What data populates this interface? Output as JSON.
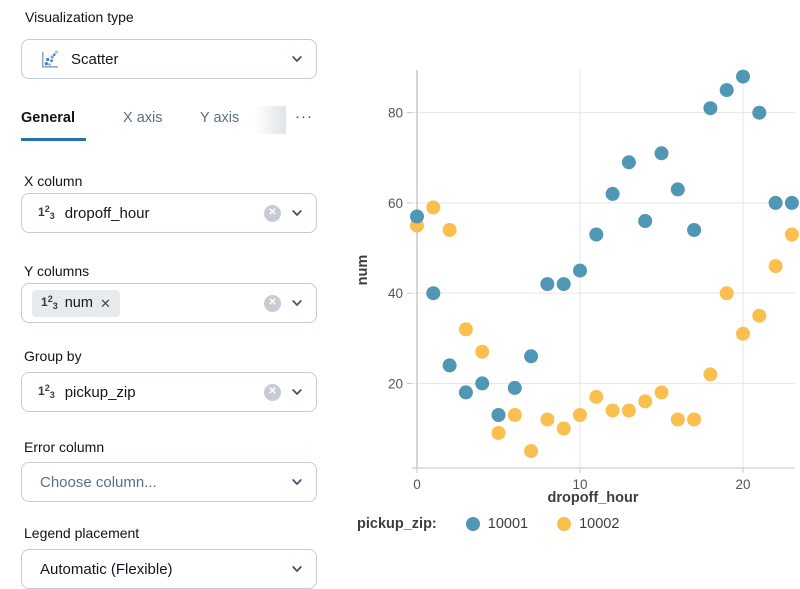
{
  "sidebar": {
    "viz_type_label": "Visualization type",
    "viz_type_value": "Scatter",
    "tabs": [
      {
        "label": "General",
        "active": true
      },
      {
        "label": "X axis",
        "active": false
      },
      {
        "label": "Y axis",
        "active": false
      }
    ],
    "tabs_more": "···",
    "fields": [
      {
        "label": "X column",
        "value": "dropoff_hour",
        "icon": "numeric-column-icon",
        "clearable": true
      },
      {
        "label": "Y columns",
        "value": "num",
        "icon": "numeric-column-icon",
        "tag": true,
        "clearable": true
      },
      {
        "label": "Group by",
        "value": "pickup_zip",
        "icon": "numeric-column-icon",
        "clearable": true
      },
      {
        "label": "Error column",
        "placeholder": "Choose column...",
        "clearable": false
      },
      {
        "label": "Legend placement",
        "value": "Automatic (Flexible)",
        "clearable": false
      }
    ]
  },
  "chart_data": {
    "type": "scatter",
    "title": "",
    "xlabel": "dropoff_hour",
    "ylabel": "num",
    "x_ticks": [
      0,
      10,
      20
    ],
    "y_ticks": [
      20,
      40,
      60,
      80
    ],
    "xlim": [
      -0.35,
      23.5
    ],
    "ylim": [
      1,
      89.5
    ],
    "grid": true,
    "legend": {
      "title": "pickup_zip:",
      "position": "bottom"
    },
    "series": [
      {
        "name": "10001",
        "color": "#4f97b2",
        "points": [
          [
            0,
            57
          ],
          [
            1,
            40
          ],
          [
            2,
            24
          ],
          [
            3,
            18
          ],
          [
            4,
            20
          ],
          [
            5,
            13
          ],
          [
            6,
            19
          ],
          [
            7,
            26
          ],
          [
            8,
            42
          ],
          [
            9,
            42
          ],
          [
            10,
            45
          ],
          [
            11,
            53
          ],
          [
            12,
            62
          ],
          [
            13,
            69
          ],
          [
            14,
            56
          ],
          [
            15,
            71
          ],
          [
            16,
            63
          ],
          [
            17,
            54
          ],
          [
            18,
            81
          ],
          [
            19,
            85
          ],
          [
            20,
            88
          ],
          [
            21,
            80
          ],
          [
            22,
            60
          ],
          [
            23,
            60
          ]
        ]
      },
      {
        "name": "10002",
        "color": "#fbbf4f",
        "points": [
          [
            0,
            55
          ],
          [
            1,
            59
          ],
          [
            2,
            54
          ],
          [
            3,
            32
          ],
          [
            4,
            27
          ],
          [
            5,
            9
          ],
          [
            6,
            13
          ],
          [
            7,
            5
          ],
          [
            8,
            12
          ],
          [
            9,
            10
          ],
          [
            10,
            13
          ],
          [
            11,
            17
          ],
          [
            12,
            14
          ],
          [
            13,
            14
          ],
          [
            14,
            16
          ],
          [
            15,
            18
          ],
          [
            16,
            12
          ],
          [
            17,
            12
          ],
          [
            18,
            22
          ],
          [
            19,
            40
          ],
          [
            20,
            31
          ],
          [
            21,
            35
          ],
          [
            22,
            46
          ],
          [
            23,
            53
          ]
        ]
      }
    ]
  },
  "colors": {
    "accent": "#2272b4",
    "grid": "#e7e7e7",
    "axis": "#c6c6c6",
    "tick_text": "#555555",
    "axis_title_text": "#3d3d3d"
  }
}
